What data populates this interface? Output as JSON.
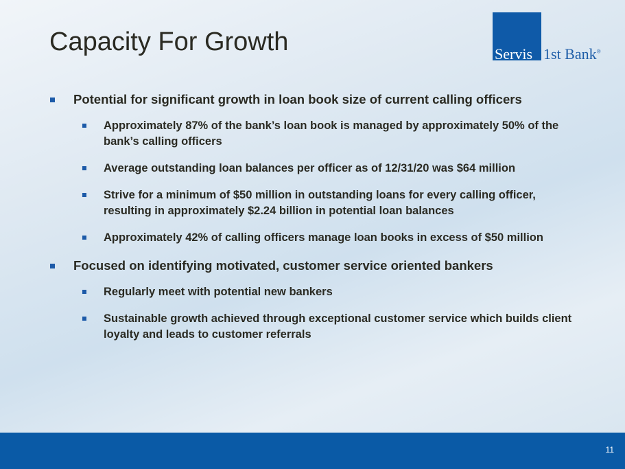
{
  "title": "Capacity For Growth",
  "logo": {
    "part1": "Servis",
    "part2": "1st Bank",
    "mark": "®"
  },
  "bullets": [
    {
      "text": "Potential for significant growth in loan book size of current calling officers",
      "sub": [
        "Approximately 87% of the bank’s loan book is managed by approximately 50% of the bank’s calling officers",
        "Average outstanding loan balances per officer as of 12/31/20 was $64 million",
        "Strive for a minimum of $50 million in outstanding loans for every calling officer, resulting in approximately $2.24 billion in potential loan balances",
        "Approximately 42% of calling officers manage loan books in excess of $50 million"
      ]
    },
    {
      "text": "Focused on identifying motivated, customer service oriented bankers",
      "sub": [
        "Regularly meet with potential new bankers",
        "Sustainable growth achieved through exceptional customer service which builds client loyalty and leads to customer referrals"
      ]
    }
  ],
  "page_number": "11",
  "colors": {
    "accent": "#1c5aa8",
    "footer": "#0a5aa6",
    "text": "#2a2a22"
  }
}
